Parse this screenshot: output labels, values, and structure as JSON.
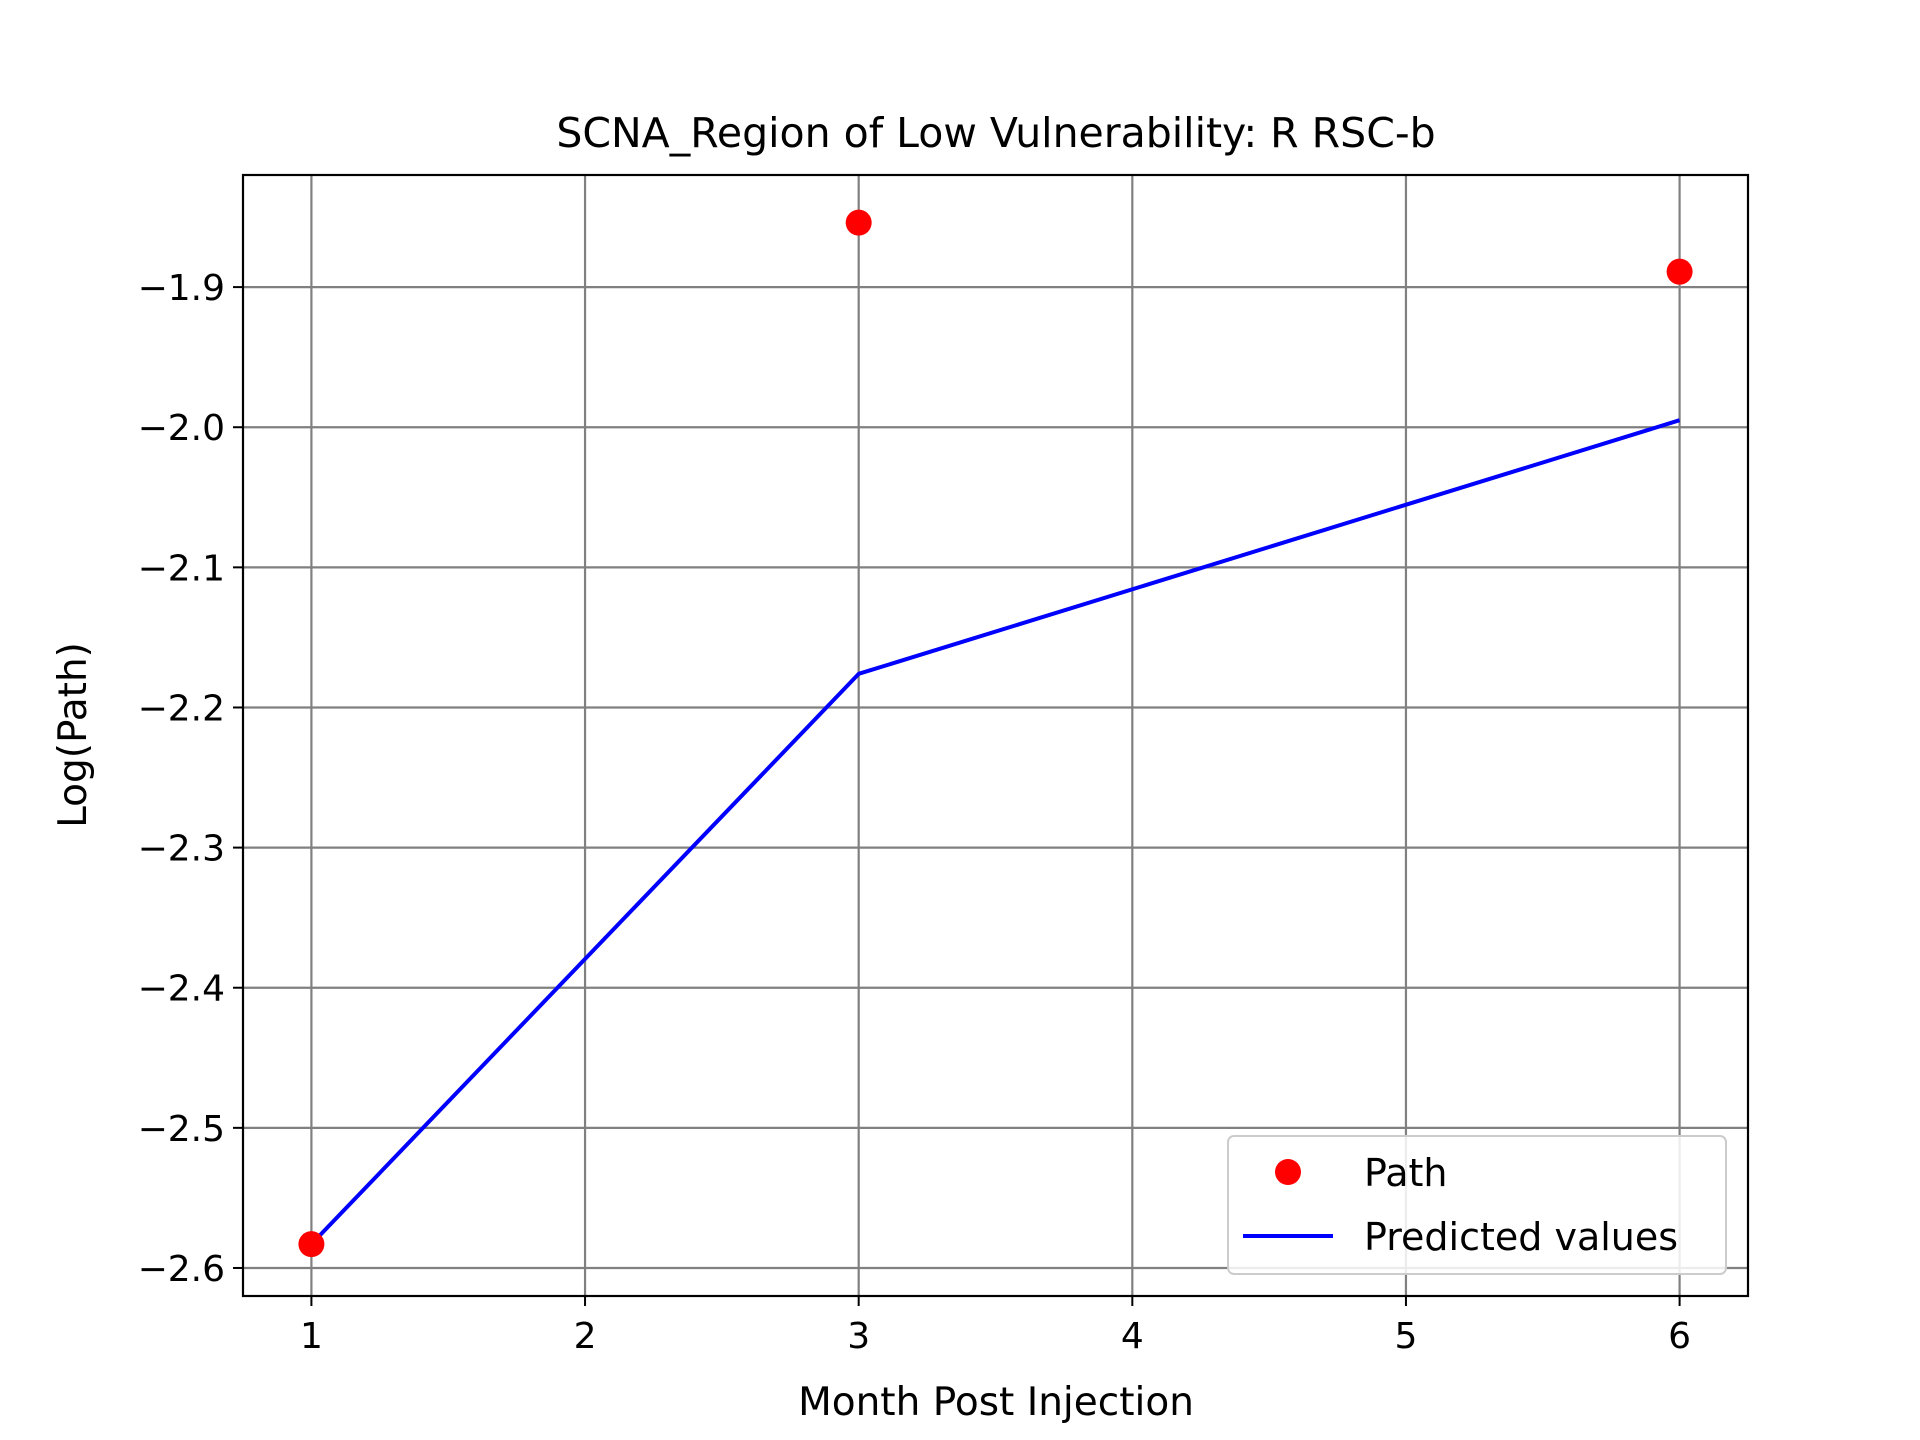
{
  "chart_data": {
    "type": "line",
    "title": "SCNA_Region of Low Vulnerability: R RSC-b",
    "xlabel": "Month Post Injection",
    "ylabel": "Log(Path)",
    "xlim": [
      0.75,
      6.25
    ],
    "ylim": [
      -2.62,
      -1.82
    ],
    "xticks": [
      1,
      2,
      3,
      4,
      5,
      6
    ],
    "yticks": [
      -1.9,
      -2.0,
      -2.1,
      -2.2,
      -2.3,
      -2.4,
      -2.5,
      -2.6
    ],
    "xtick_labels": [
      "1",
      "2",
      "3",
      "4",
      "5",
      "6"
    ],
    "ytick_labels": [
      "−1.9",
      "−2.0",
      "−2.1",
      "−2.2",
      "−2.3",
      "−2.4",
      "−2.5",
      "−2.6"
    ],
    "grid": true,
    "legend_position": "lower-right",
    "series": [
      {
        "name": "Path",
        "kind": "scatter",
        "color": "#ff0000",
        "x": [
          1,
          3,
          6
        ],
        "y": [
          -2.583,
          -1.854,
          -1.889
        ]
      },
      {
        "name": "Predicted values",
        "kind": "line",
        "color": "#0000ff",
        "x": [
          1,
          3,
          6
        ],
        "y": [
          -2.583,
          -2.176,
          -1.995
        ]
      }
    ]
  }
}
